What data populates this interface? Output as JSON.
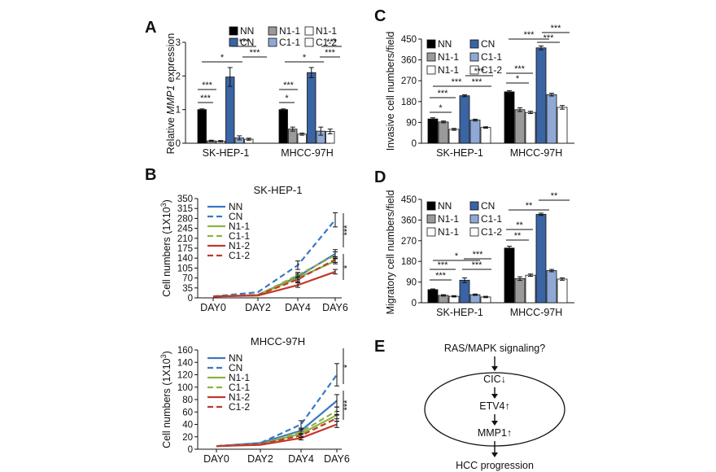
{
  "panels": {
    "A": {
      "label": "A",
      "chart_data": {
        "type": "bar",
        "ylabel": "Relative MMP1 expression",
        "ylabel_parts": [
          "Relative ",
          "MMP1",
          " expression"
        ],
        "ylim": [
          0,
          3
        ],
        "yticks": [
          "0",
          "1",
          "2",
          "3"
        ],
        "categories": [
          "SK-HEP-1",
          "MHCC-97H"
        ],
        "series": [
          {
            "name": "NN",
            "values": [
              1.0,
              1.0
            ],
            "errors": [
              0.02,
              0.02
            ]
          },
          {
            "name": "N1-1",
            "values": [
              0.07,
              0.42
            ],
            "errors": [
              0.02,
              0.06
            ]
          },
          {
            "name": "N1-1",
            "values": [
              0.06,
              0.27
            ],
            "errors": [
              0.02,
              0.03
            ]
          },
          {
            "name": "CN",
            "values": [
              1.97,
              2.1
            ],
            "errors": [
              0.28,
              0.15
            ]
          },
          {
            "name": "C1-1",
            "values": [
              0.16,
              0.36
            ],
            "errors": [
              0.06,
              0.12
            ]
          },
          {
            "name": "C1-2",
            "values": [
              0.12,
              0.35
            ],
            "errors": [
              0.03,
              0.07
            ]
          }
        ],
        "legend_labels": [
          "NN",
          "N1-1",
          "N1-1",
          "CN",
          "C1-1",
          "C1-2"
        ],
        "significance": [
          "***",
          "***",
          "*",
          "***",
          "***",
          "*",
          "***",
          "*",
          "***",
          "***"
        ]
      }
    },
    "B": {
      "label": "B",
      "charts": [
        {
          "type": "line",
          "title": "SK-HEP-1",
          "ylabel": "Cell numbers (1X10",
          "ylabel_sup": "3",
          "ylim": [
            0,
            350
          ],
          "yticks": [
            "0",
            "35",
            "70",
            "105",
            "140",
            "175",
            "210",
            "245",
            "280",
            "315",
            "350"
          ],
          "x": [
            "DAY0",
            "DAY2",
            "DAY4",
            "DAY6"
          ],
          "series": [
            {
              "name": "NN",
              "values": [
                5,
                10,
                75,
                155
              ],
              "errors": [
                0,
                0,
                10,
                15
              ]
            },
            {
              "name": "CN",
              "values": [
                5,
                20,
                115,
                275
              ],
              "errors": [
                0,
                0,
                15,
                25
              ]
            },
            {
              "name": "N1-1",
              "values": [
                5,
                10,
                70,
                130
              ],
              "errors": [
                0,
                0,
                10,
                10
              ]
            },
            {
              "name": "C1-1",
              "values": [
                5,
                10,
                80,
                150
              ],
              "errors": [
                0,
                0,
                10,
                12
              ]
            },
            {
              "name": "N1-2",
              "values": [
                5,
                8,
                45,
                92
              ],
              "errors": [
                0,
                0,
                8,
                8
              ]
            },
            {
              "name": "C1-2",
              "values": [
                5,
                10,
                65,
                135
              ],
              "errors": [
                0,
                0,
                10,
                10
              ]
            }
          ],
          "significance": [
            "***",
            "*"
          ]
        },
        {
          "type": "line",
          "title": "MHCC-97H",
          "ylabel": "Cell numbers (1X10",
          "ylabel_sup": "3",
          "ylim": [
            0,
            160
          ],
          "yticks": [
            "0",
            "20",
            "40",
            "60",
            "80",
            "100",
            "120",
            "140",
            "160"
          ],
          "x": [
            "DAY0",
            "DAY2",
            "DAY4",
            "DAY6"
          ],
          "series": [
            {
              "name": "NN",
              "values": [
                5,
                10,
                30,
                78
              ],
              "errors": [
                0,
                0,
                4,
                10
              ]
            },
            {
              "name": "CN",
              "values": [
                5,
                10,
                40,
                120
              ],
              "errors": [
                0,
                0,
                6,
                18
              ]
            },
            {
              "name": "N1-1",
              "values": [
                5,
                8,
                25,
                55
              ],
              "errors": [
                0,
                0,
                4,
                6
              ]
            },
            {
              "name": "C1-1",
              "values": [
                5,
                8,
                28,
                62
              ],
              "errors": [
                0,
                0,
                4,
                6
              ]
            },
            {
              "name": "N1-2",
              "values": [
                5,
                7,
                18,
                40
              ],
              "errors": [
                0,
                0,
                3,
                5
              ]
            },
            {
              "name": "C1-2",
              "values": [
                5,
                8,
                22,
                50
              ],
              "errors": [
                0,
                0,
                3,
                5
              ]
            }
          ],
          "significance": [
            "*",
            "***"
          ]
        }
      ]
    },
    "C": {
      "label": "C",
      "chart_data": {
        "type": "bar",
        "ylabel": "Invasive cell numbers/field",
        "ylim": [
          0,
          450
        ],
        "yticks": [
          "0",
          "90",
          "180",
          "270",
          "360",
          "450"
        ],
        "categories": [
          "SK-HEP-1",
          "MHCC-97H"
        ],
        "series": [
          {
            "name": "NN",
            "values": [
              105,
              222
            ],
            "errors": [
              5,
              5
            ]
          },
          {
            "name": "N1-1",
            "values": [
              92,
              145
            ],
            "errors": [
              4,
              8
            ]
          },
          {
            "name": "N1-1",
            "values": [
              60,
              133
            ],
            "errors": [
              4,
              5
            ]
          },
          {
            "name": "CN",
            "values": [
              205,
              412
            ],
            "errors": [
              4,
              8
            ]
          },
          {
            "name": "C1-1",
            "values": [
              100,
              210
            ],
            "errors": [
              4,
              6
            ]
          },
          {
            "name": "C1-2",
            "values": [
              68,
              155
            ],
            "errors": [
              3,
              8
            ]
          }
        ],
        "legend_labels": [
          "NN",
          "CN",
          "N1-1",
          "C1-1",
          "N1-1",
          "C1-2"
        ],
        "significance": [
          "*",
          "***",
          "***",
          "***",
          "***",
          "*",
          "***",
          "***",
          "***",
          "***"
        ]
      }
    },
    "D": {
      "label": "D",
      "chart_data": {
        "type": "bar",
        "ylabel": "Migratory cell numbers/field",
        "ylim": [
          0,
          450
        ],
        "yticks": [
          "0",
          "90",
          "180",
          "270",
          "360",
          "450"
        ],
        "categories": [
          "SK-HEP-1",
          "MHCC-97H"
        ],
        "series": [
          {
            "name": "NN",
            "values": [
              57,
              238
            ],
            "errors": [
              3,
              8
            ]
          },
          {
            "name": "N1-1",
            "values": [
              32,
              105
            ],
            "errors": [
              3,
              8
            ]
          },
          {
            "name": "N1-1",
            "values": [
              28,
              120
            ],
            "errors": [
              3,
              5
            ]
          },
          {
            "name": "CN",
            "values": [
              98,
              385
            ],
            "errors": [
              10,
              5
            ]
          },
          {
            "name": "C1-1",
            "values": [
              35,
              140
            ],
            "errors": [
              3,
              5
            ]
          },
          {
            "name": "C1-2",
            "values": [
              25,
              103
            ],
            "errors": [
              3,
              5
            ]
          }
        ],
        "legend_labels": [
          "NN",
          "CN",
          "N1-1",
          "C1-1",
          "N1-1",
          "C1-2"
        ],
        "significance": [
          "***",
          "***",
          "*",
          "***",
          "***",
          "**",
          "**",
          "**",
          "**"
        ]
      }
    },
    "E": {
      "label": "E",
      "nodes": {
        "top": "RAS/MAPK signaling?",
        "cic": "CIC↓",
        "etv4": "ETV4↑",
        "mmp1": "MMP1↑",
        "bottom": "HCC progression"
      }
    }
  },
  "colors": {
    "NN": "#000000",
    "N1-1": "#9a9a9a",
    "N1-1b": "#ffffff",
    "CN": "#3a64a3",
    "C1-1": "#8fa9d6",
    "C1-2": "#ffffff",
    "line_NN": "#3a78c3",
    "line_CN": "#3a78c3",
    "line_N1": "#8db33f",
    "line_N2": "#c0392b"
  }
}
